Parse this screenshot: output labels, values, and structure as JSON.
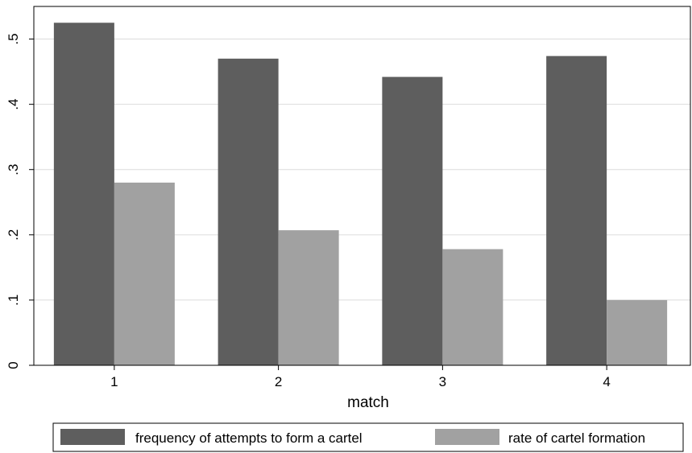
{
  "chart_data": {
    "type": "bar",
    "xlabel": "match",
    "ylabel": "",
    "categories": [
      "1",
      "2",
      "3",
      "4"
    ],
    "series": [
      {
        "name": "frequency of attempts to form a cartel",
        "color": "#5e5e5e",
        "values": [
          0.525,
          0.47,
          0.442,
          0.474
        ]
      },
      {
        "name": "rate of cartel formation",
        "color": "#a1a1a1",
        "values": [
          0.28,
          0.207,
          0.178,
          0.1
        ]
      }
    ],
    "ylim": [
      0,
      0.55
    ],
    "yticks": [
      {
        "value": 0,
        "label": "0"
      },
      {
        "value": 0.1,
        "label": ".1"
      },
      {
        "value": 0.2,
        "label": ".2"
      },
      {
        "value": 0.3,
        "label": ".3"
      },
      {
        "value": 0.4,
        "label": ".4"
      },
      {
        "value": 0.5,
        "label": ".5"
      }
    ],
    "grid": true,
    "legend_position": "bottom"
  }
}
